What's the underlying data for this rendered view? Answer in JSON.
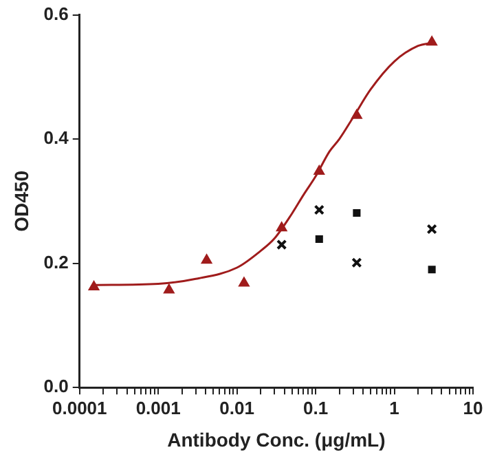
{
  "chart_data": {
    "type": "scatter",
    "xlabel": "Antibody Conc. (μg/mL)",
    "ylabel": "OD450",
    "log": "x",
    "grid": false,
    "legend": false,
    "xlim": [
      0.0001,
      10
    ],
    "ylim": [
      0,
      0.6
    ],
    "xticks": [
      0.0001,
      {
        "value": 0.0002,
        "label": null
      },
      {
        "value": 0.0003,
        "label": null
      },
      {
        "value": 0.0004,
        "label": null
      },
      {
        "value": 0.0005,
        "label": null
      },
      {
        "value": 0.0006,
        "label": null
      },
      {
        "value": 0.0007,
        "label": null
      },
      {
        "value": 0.0008,
        "label": null
      },
      {
        "value": 0.0009,
        "label": null
      },
      0.001,
      {
        "value": 0.002,
        "label": null
      },
      {
        "value": 0.003,
        "label": null
      },
      {
        "value": 0.004,
        "label": null
      },
      {
        "value": 0.005,
        "label": null
      },
      {
        "value": 0.006,
        "label": null
      },
      {
        "value": 0.007,
        "label": null
      },
      {
        "value": 0.008,
        "label": null
      },
      {
        "value": 0.009,
        "label": null
      },
      0.01,
      {
        "value": 0.02,
        "label": null
      },
      {
        "value": 0.03,
        "label": null
      },
      {
        "value": 0.04,
        "label": null
      },
      {
        "value": 0.05,
        "label": null
      },
      {
        "value": 0.06,
        "label": null
      },
      {
        "value": 0.07,
        "label": null
      },
      {
        "value": 0.08,
        "label": null
      },
      {
        "value": 0.09,
        "label": null
      },
      0.1,
      {
        "value": 0.2,
        "label": null
      },
      {
        "value": 0.3,
        "label": null
      },
      {
        "value": 0.4,
        "label": null
      },
      {
        "value": 0.5,
        "label": null
      },
      {
        "value": 0.6,
        "label": null
      },
      {
        "value": 0.7,
        "label": null
      },
      {
        "value": 0.8,
        "label": null
      },
      {
        "value": 0.9,
        "label": null
      },
      1,
      {
        "value": 2,
        "label": null
      },
      {
        "value": 3,
        "label": null
      },
      {
        "value": 4,
        "label": null
      },
      {
        "value": 5,
        "label": null
      },
      {
        "value": 6,
        "label": null
      },
      {
        "value": 7,
        "label": null
      },
      {
        "value": 8,
        "label": null
      },
      {
        "value": 9,
        "label": null
      },
      10
    ],
    "yticks": [
      {
        "value": 0,
        "label": "0.0"
      },
      0.2,
      0.4,
      0.6
    ],
    "series": [
      {
        "type": "line",
        "color": "#a01c1c",
        "marker": "none",
        "line_style": "solid",
        "x": [
          0.00015,
          0.001,
          0.003,
          0.01,
          0.02,
          0.03,
          0.05,
          0.07,
          0.1,
          0.15,
          0.2,
          0.3,
          0.5,
          1,
          2,
          3
        ],
        "values": [
          0.165,
          0.167,
          0.175,
          0.193,
          0.22,
          0.24,
          0.28,
          0.31,
          0.34,
          0.38,
          0.4,
          0.435,
          0.48,
          0.525,
          0.55,
          0.555
        ]
      },
      {
        "color": "#a01c1c",
        "marker": "triangle",
        "x": [
          0.000152,
          0.00137,
          0.00412,
          0.0123,
          0.037,
          0.111,
          0.333,
          3
        ],
        "values": [
          0.162,
          0.157,
          0.205,
          0.168,
          0.257,
          0.348,
          0.438,
          0.556
        ]
      },
      {
        "color": "#111111",
        "marker": "cross",
        "x": [
          0.037,
          0.111,
          0.333,
          3
        ],
        "values": [
          0.23,
          0.286,
          0.201,
          0.255
        ]
      },
      {
        "color": "#111111",
        "marker": "square",
        "x": [
          0.111,
          0.333,
          3
        ],
        "values": [
          0.239,
          0.281,
          0.19
        ]
      }
    ]
  }
}
